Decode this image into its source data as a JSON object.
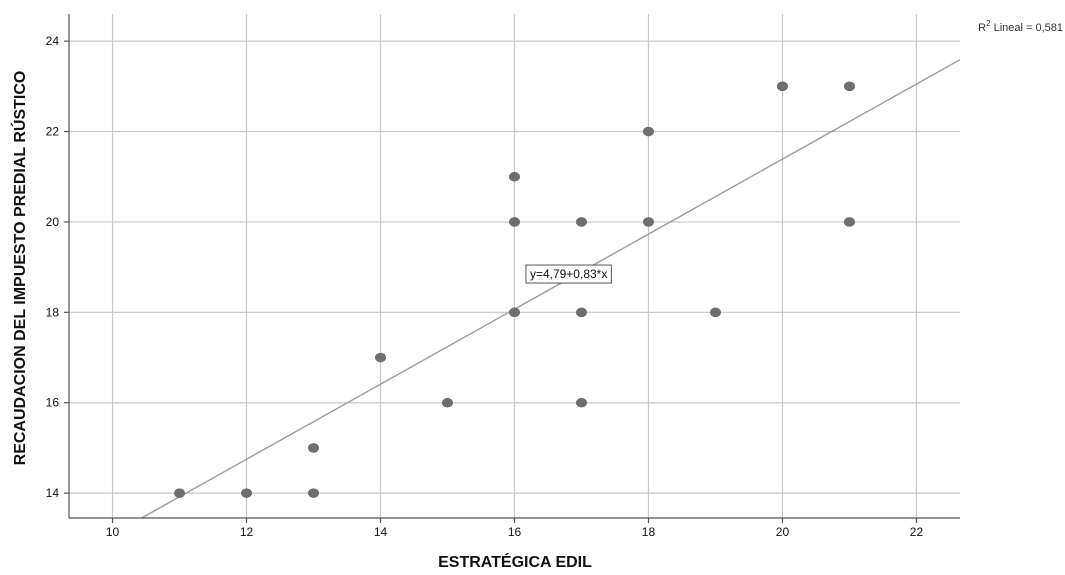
{
  "chart_data": {
    "type": "scatter",
    "xlabel": "ESTRATÉGICA EDIL",
    "ylabel": "RECAUDACION DEL IMPUESTO PREDIAL RÚSTICO",
    "xlim": [
      9.35,
      22.65
    ],
    "ylim": [
      13.45,
      24.6
    ],
    "x_ticks": [
      10,
      12,
      14,
      16,
      18,
      20,
      22
    ],
    "y_ticks": [
      14,
      16,
      18,
      20,
      22,
      24
    ],
    "grid": true,
    "points": [
      {
        "x": 11,
        "y": 14
      },
      {
        "x": 12,
        "y": 14
      },
      {
        "x": 13,
        "y": 14
      },
      {
        "x": 13,
        "y": 15
      },
      {
        "x": 14,
        "y": 17
      },
      {
        "x": 15,
        "y": 16
      },
      {
        "x": 16,
        "y": 18
      },
      {
        "x": 16,
        "y": 20
      },
      {
        "x": 16,
        "y": 21
      },
      {
        "x": 17,
        "y": 16
      },
      {
        "x": 17,
        "y": 18
      },
      {
        "x": 17,
        "y": 20
      },
      {
        "x": 18,
        "y": 20
      },
      {
        "x": 18,
        "y": 22
      },
      {
        "x": 19,
        "y": 18
      },
      {
        "x": 20,
        "y": 23
      },
      {
        "x": 21,
        "y": 20
      },
      {
        "x": 21,
        "y": 23
      }
    ],
    "fit_line": {
      "intercept": 4.79,
      "slope": 0.83,
      "equation_label": "y=4,79+0,83*x",
      "r2_prefix": "R",
      "r2_sup": "2",
      "r2_rest": " Lineal = 0,581"
    },
    "colors": {
      "points": "#6e6e6e",
      "fit_line": "#9a9a9a",
      "grid": "#c8c8c8",
      "axis": "#555555"
    }
  }
}
